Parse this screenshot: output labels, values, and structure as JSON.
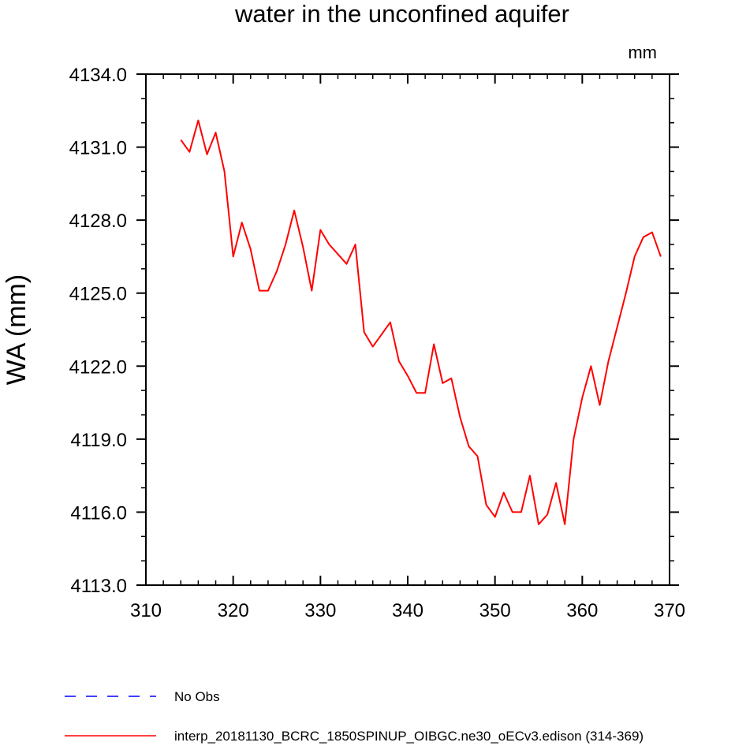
{
  "chart_data": {
    "type": "line",
    "title": "water in the unconfined aquifer",
    "units": "mm",
    "xlabel": "",
    "ylabel": "WA  (mm)",
    "xlim": [
      310,
      370
    ],
    "ylim": [
      4113.0,
      4134.0
    ],
    "x_ticks": [
      310,
      320,
      330,
      340,
      350,
      360,
      370
    ],
    "y_ticks": [
      4113.0,
      4116.0,
      4119.0,
      4122.0,
      4125.0,
      4128.0,
      4131.0,
      4134.0
    ],
    "y_tick_labels": [
      "4113.0",
      "4116.0",
      "4119.0",
      "4122.0",
      "4125.0",
      "4128.0",
      "4131.0",
      "4134.0"
    ],
    "grid": false,
    "series": [
      {
        "name": "interp_20181130_BCRC_1850SPINUP_OIBGC.ne30_oECv3.edison (314-369)",
        "color": "#ff0000",
        "style": "solid",
        "x": [
          314,
          315,
          316,
          317,
          318,
          319,
          320,
          321,
          322,
          323,
          324,
          325,
          326,
          327,
          328,
          329,
          330,
          331,
          332,
          333,
          334,
          335,
          336,
          337,
          338,
          339,
          340,
          341,
          342,
          343,
          344,
          345,
          346,
          347,
          348,
          349,
          350,
          351,
          352,
          353,
          354,
          355,
          356,
          357,
          358,
          359,
          360,
          361,
          362,
          363,
          364,
          365,
          366,
          367,
          368,
          369
        ],
        "values": [
          4131.3,
          4130.8,
          4132.1,
          4130.7,
          4131.6,
          4130.0,
          4126.5,
          4127.9,
          4126.8,
          4125.1,
          4125.1,
          4125.9,
          4127.0,
          4128.4,
          4126.9,
          4125.1,
          4127.6,
          4127.0,
          4126.6,
          4126.2,
          4127.0,
          4123.4,
          4122.8,
          4123.3,
          4123.8,
          4122.2,
          4121.6,
          4120.9,
          4120.9,
          4122.9,
          4121.3,
          4121.5,
          4119.9,
          4118.7,
          4118.3,
          4116.3,
          4115.8,
          4116.8,
          4116.0,
          4116.0,
          4117.5,
          4115.5,
          4115.9,
          4117.2,
          4115.5,
          4119.0,
          4120.7,
          4122.0,
          4120.4,
          4122.2,
          4123.6,
          4125.0,
          4126.5,
          4127.3,
          4127.5,
          4126.5
        ]
      }
    ],
    "legend": {
      "position": "bottom",
      "entries": [
        {
          "label": "No Obs",
          "color": "#0000ff",
          "style": "dashed"
        },
        {
          "label": "interp_20181130_BCRC_1850SPINUP_OIBGC.ne30_oECv3.edison (314-369)",
          "color": "#ff0000",
          "style": "solid"
        }
      ]
    }
  }
}
